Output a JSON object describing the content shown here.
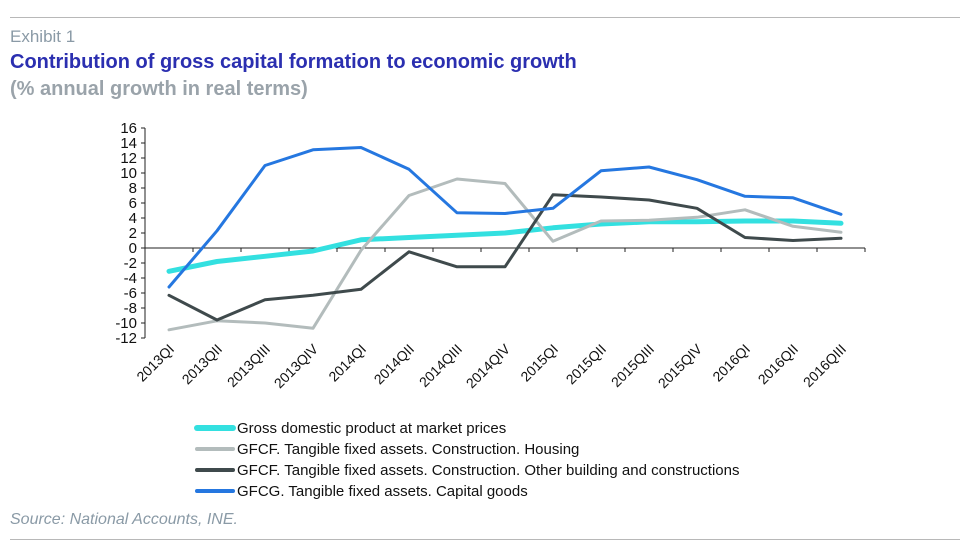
{
  "header": {
    "exhibit": "Exhibit 1",
    "title": "Contribution of gross capital formation to economic growth",
    "subtitle": "(% annual growth in real terms)"
  },
  "footer": {
    "source": "Source: National Accounts, INE."
  },
  "chart_data": {
    "type": "line",
    "categories": [
      "2013QI",
      "2013QII",
      "2013QIII",
      "2013QIV",
      "2014QI",
      "2014QII",
      "2014QIII",
      "2014QIV",
      "2015QI",
      "2015QII",
      "2015QIII",
      "2015QIV",
      "2016QI",
      "2016QII",
      "2016QIII"
    ],
    "ylim": [
      -12,
      16
    ],
    "yticks": [
      -12,
      -10,
      -8,
      -6,
      -4,
      -2,
      0,
      2,
      4,
      6,
      8,
      10,
      12,
      14,
      16
    ],
    "legend_position": "bottom",
    "grid": false,
    "series": [
      {
        "name": "Gross domestic product at market prices",
        "color": "#33e0e0",
        "values": [
          -3.1,
          -1.8,
          -1.1,
          -0.4,
          1.1,
          1.4,
          1.7,
          2.0,
          2.7,
          3.2,
          3.5,
          3.5,
          3.6,
          3.6,
          3.3
        ]
      },
      {
        "name": "GFCF. Tangible fixed assets. Construction. Housing",
        "color": "#b3bcbc",
        "values": [
          -10.9,
          -9.7,
          -10.0,
          -10.7,
          -0.3,
          7.0,
          9.2,
          8.6,
          0.9,
          3.6,
          3.7,
          4.1,
          5.1,
          2.9,
          2.1
        ]
      },
      {
        "name": "GFCF. Tangible fixed assets. Construction. Other building and constructions",
        "color": "#3f4a4c",
        "values": [
          -6.3,
          -9.6,
          -6.9,
          -6.3,
          -5.5,
          -0.5,
          -2.5,
          -2.5,
          7.1,
          6.8,
          6.4,
          5.3,
          1.4,
          1.0,
          1.3
        ]
      },
      {
        "name": "GFCG. Tangible fixed assets. Capital goods",
        "color": "#2577e0",
        "values": [
          -5.2,
          2.3,
          11.0,
          13.1,
          13.4,
          10.5,
          4.7,
          4.6,
          5.3,
          10.3,
          10.8,
          9.1,
          6.9,
          6.7,
          4.5
        ]
      }
    ]
  }
}
